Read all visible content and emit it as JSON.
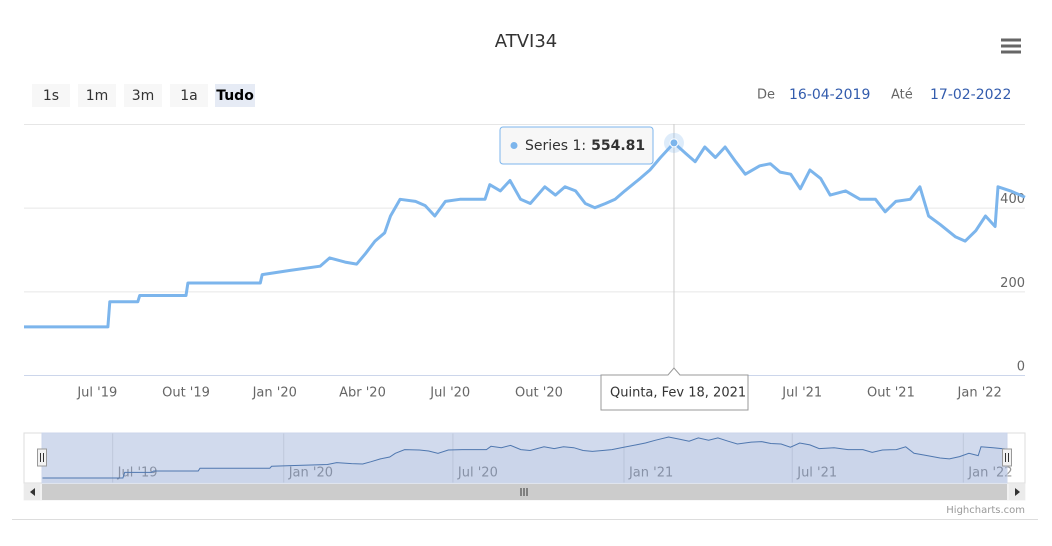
{
  "title": "ATVI34",
  "range_selector": {
    "buttons": [
      "1s",
      "1m",
      "3m",
      "1a",
      "Tudo"
    ],
    "from_label": "De",
    "from": "16-04-2019",
    "to_label": "Até",
    "to": "17-02-2022"
  },
  "tooltip": {
    "series_label": "Series 1:",
    "point": "Quinta, Fev 18, 2021"
  },
  "credits": "Highcharts.com",
  "chart_data": {
    "type": "line",
    "color": "#7cb5ec",
    "x": [
      "2019-04-16",
      "2019-07-12",
      "2019-07-14",
      "2019-08-12",
      "2019-08-14",
      "2019-10-01",
      "2019-10-03",
      "2019-12-17",
      "2019-12-19",
      "2020-01-17",
      "2020-02-17",
      "2020-02-27",
      "2020-03-14",
      "2020-03-26",
      "2020-04-04",
      "2020-04-14",
      "2020-04-24",
      "2020-04-30",
      "2020-05-10",
      "2020-05-26",
      "2020-06-05",
      "2020-06-15",
      "2020-06-26",
      "2020-07-11",
      "2020-08-06",
      "2020-08-11",
      "2020-08-22",
      "2020-09-01",
      "2020-09-12",
      "2020-09-22",
      "2020-10-07",
      "2020-10-18",
      "2020-10-28",
      "2020-11-08",
      "2020-11-18",
      "2020-11-28",
      "2020-12-09",
      "2020-12-19",
      "2020-12-29",
      "2021-01-14",
      "2021-01-24",
      "2021-02-04",
      "2021-02-18",
      "2021-03-02",
      "2021-03-12",
      "2021-03-22",
      "2021-04-02",
      "2021-04-12",
      "2021-04-23",
      "2021-05-03",
      "2021-05-18",
      "2021-05-29",
      "2021-06-08",
      "2021-06-19",
      "2021-06-29",
      "2021-07-09",
      "2021-07-20",
      "2021-07-30",
      "2021-08-15",
      "2021-08-30",
      "2021-09-15",
      "2021-09-25",
      "2021-10-06",
      "2021-10-21",
      "2021-10-31",
      "2021-11-09",
      "2021-11-21",
      "2021-12-07",
      "2021-12-17",
      "2021-12-28",
      "2022-01-07",
      "2022-01-17",
      "2022-01-20",
      "2022-02-02",
      "2022-02-17"
    ],
    "values": [
      115,
      115,
      175,
      175,
      190,
      190,
      220,
      220,
      240,
      250,
      260,
      280,
      270,
      265,
      290,
      320,
      340,
      380,
      420,
      415,
      405,
      380,
      415,
      420,
      420,
      455,
      440,
      465,
      420,
      410,
      450,
      430,
      450,
      440,
      410,
      400,
      410,
      420,
      440,
      470,
      490,
      520,
      554.81,
      530,
      510,
      545,
      520,
      545,
      510,
      480,
      500,
      505,
      485,
      480,
      445,
      490,
      470,
      430,
      440,
      420,
      420,
      390,
      415,
      420,
      450,
      380,
      360,
      330,
      320,
      345,
      380,
      355,
      450,
      440,
      425
    ],
    "xlim": [
      "2019-04-16",
      "2022-02-17"
    ],
    "xticks": [
      {
        "value": "2019-07-01",
        "label": "Jul '19"
      },
      {
        "value": "2019-10-01",
        "label": "Out '19"
      },
      {
        "value": "2020-01-01",
        "label": "Jan '20"
      },
      {
        "value": "2020-04-01",
        "label": "Abr '20"
      },
      {
        "value": "2020-07-01",
        "label": "Jul '20"
      },
      {
        "value": "2020-10-01",
        "label": "Out '20"
      },
      {
        "value": "2021-07-01",
        "label": "Jul '21"
      },
      {
        "value": "2021-10-01",
        "label": "Out '21"
      },
      {
        "value": "2022-01-01",
        "label": "Jan '22"
      }
    ],
    "ylim": [
      0,
      600
    ],
    "yticks": [
      0,
      200,
      400
    ],
    "grid": true,
    "navigator": {
      "xticks": [
        {
          "value": "2019-07-01",
          "label": "Jul '19"
        },
        {
          "value": "2020-01-01",
          "label": "Jan '20"
        },
        {
          "value": "2020-07-01",
          "label": "Jul '20"
        },
        {
          "value": "2021-01-01",
          "label": "Jan '21"
        },
        {
          "value": "2021-07-01",
          "label": "Jul '21"
        },
        {
          "value": "2022-01-01",
          "label": "Jan '22"
        }
      ]
    }
  }
}
